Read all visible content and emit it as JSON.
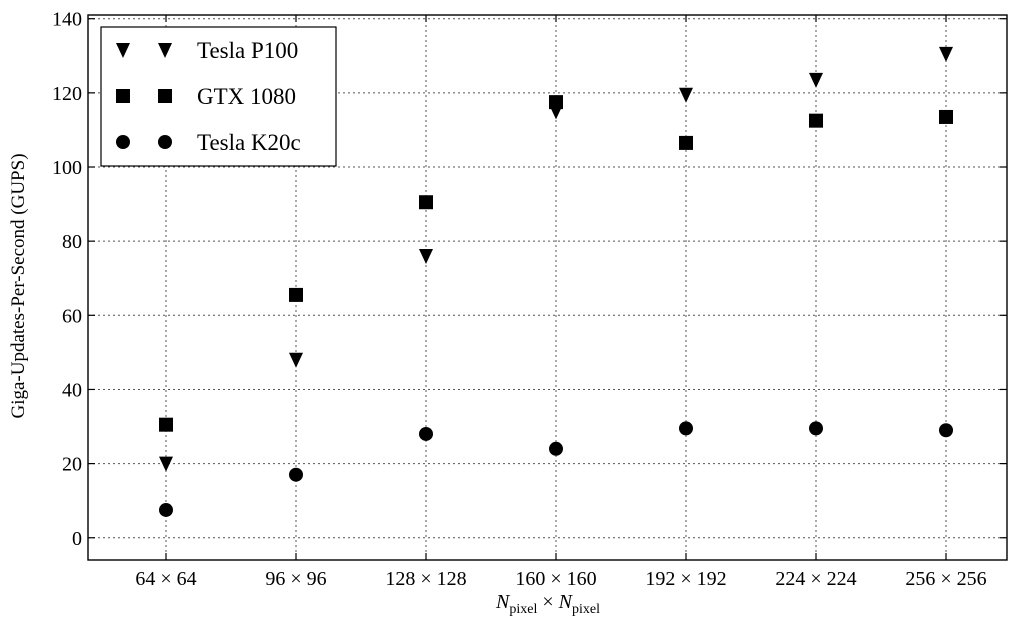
{
  "chart_data": {
    "type": "scatter",
    "categories": [
      "64 × 64",
      "96 × 96",
      "128 × 128",
      "160 × 160",
      "192 × 192",
      "224 × 224",
      "256 × 256"
    ],
    "series": [
      {
        "name": "Tesla P100",
        "marker": "triangle-down",
        "values": [
          20,
          48,
          76,
          115,
          119.5,
          123.5,
          130.5
        ]
      },
      {
        "name": "GTX 1080",
        "marker": "square",
        "values": [
          30.5,
          65.5,
          90.5,
          117.5,
          106.5,
          112.5,
          113.5
        ]
      },
      {
        "name": "Tesla K20c",
        "marker": "circle",
        "values": [
          7.5,
          17,
          28,
          24,
          29.5,
          29.5,
          29
        ]
      }
    ],
    "ylabel": "Giga-Updates-Per-Second (GUPS)",
    "xlabel": {
      "base1": "N",
      "sub1": "pixel",
      "times": " × ",
      "base2": "N",
      "sub2": "pixel"
    },
    "yticks": [
      0,
      20,
      40,
      60,
      80,
      100,
      120,
      140
    ],
    "ylim": [
      -6,
      141
    ],
    "grid": true,
    "legend_position": "top-left",
    "colors": {
      "marker": "#000000",
      "grid": "#555555"
    }
  }
}
